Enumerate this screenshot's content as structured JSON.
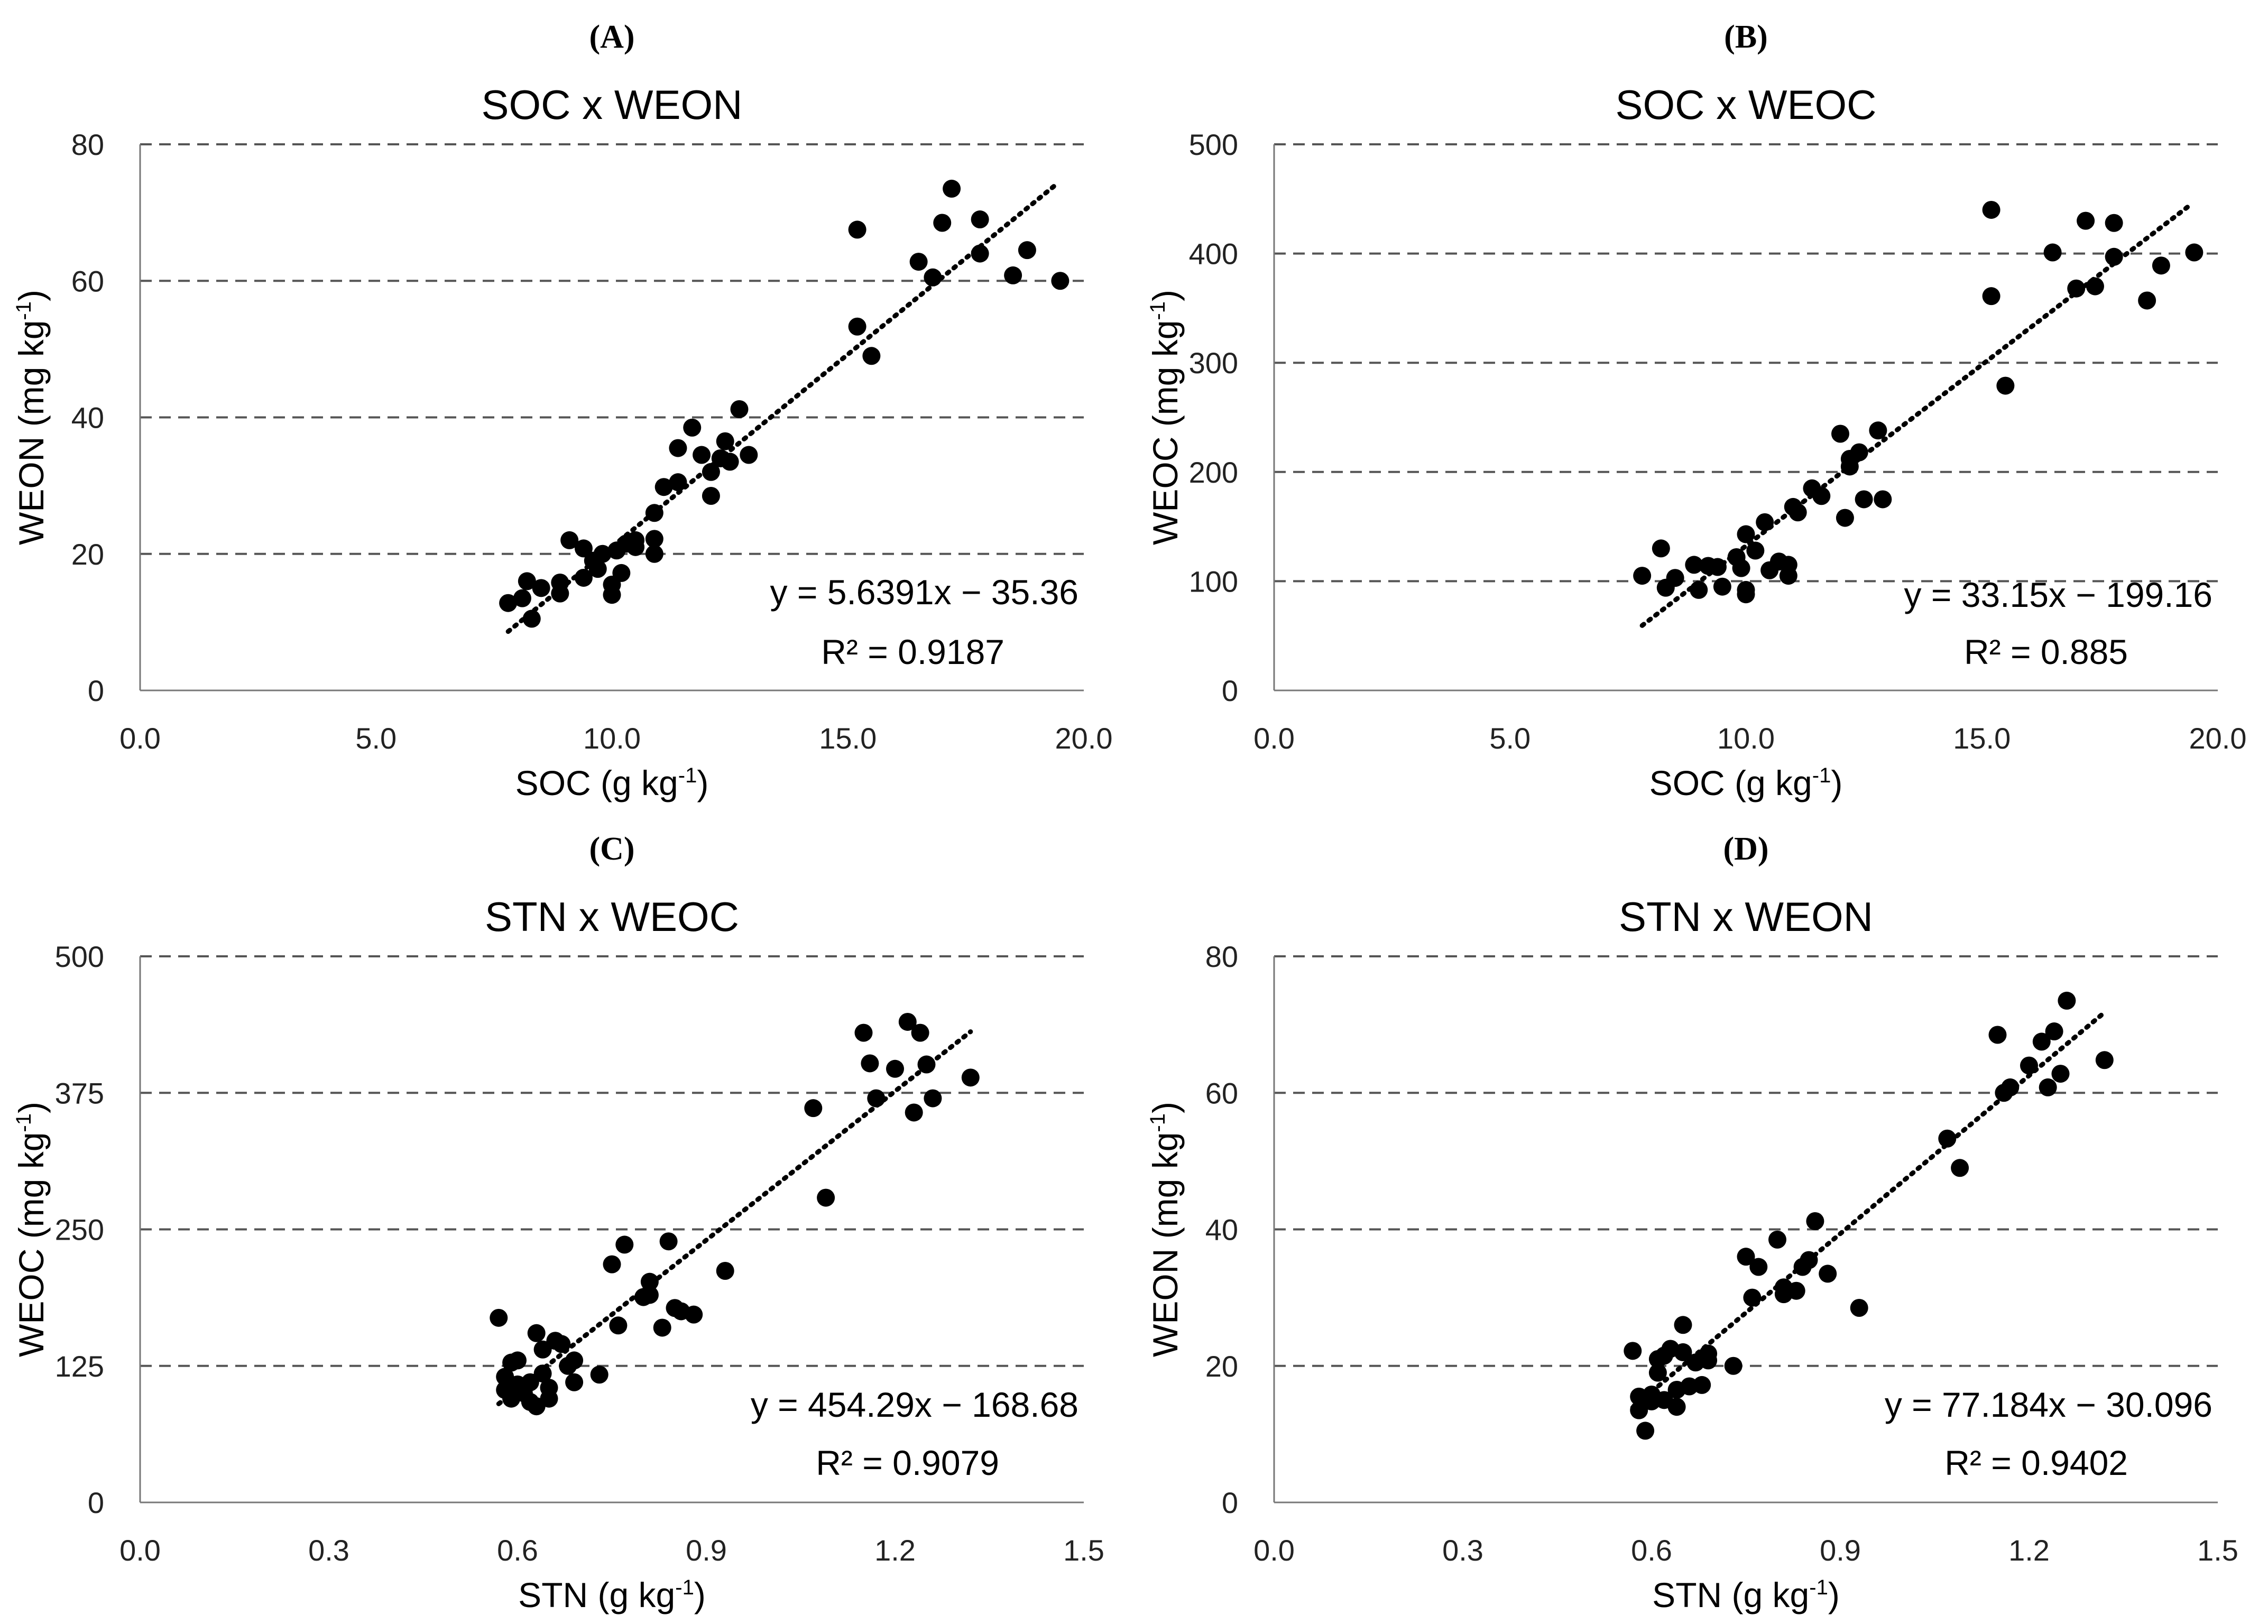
{
  "chart_data": [
    {
      "type": "scatter",
      "panel_label": "(A)",
      "title": "SOC x WEON",
      "xlabel": "SOC (g kg",
      "xlabel_sup": "-1",
      "xlabel_tail": ")",
      "ylabel": "WEON (mg kg",
      "ylabel_sup": "-1",
      "ylabel_tail": ")",
      "xlim": [
        0,
        20
      ],
      "ylim": [
        0,
        80
      ],
      "xticks": [
        0,
        5,
        10,
        15,
        20
      ],
      "xtick_labels": [
        "0.0",
        "5.0",
        "10.0",
        "15.0",
        "20.0"
      ],
      "yticks": [
        0,
        20,
        40,
        60,
        80
      ],
      "ytick_labels": [
        "0",
        "20",
        "40",
        "60",
        "80"
      ],
      "grid": "horizontal-dashed",
      "trendline": {
        "slope": 5.6391,
        "intercept": -35.36,
        "x_range": [
          7.8,
          19.4
        ]
      },
      "equation": "y = 5.6391x − 35.36",
      "r2": "R² = 0.9187",
      "points": [
        [
          7.8,
          12.8
        ],
        [
          8.1,
          13.5
        ],
        [
          8.2,
          16.0
        ],
        [
          8.3,
          10.5
        ],
        [
          8.5,
          15.0
        ],
        [
          8.9,
          14.2
        ],
        [
          8.9,
          15.8
        ],
        [
          9.1,
          22.0
        ],
        [
          9.4,
          20.8
        ],
        [
          9.4,
          16.5
        ],
        [
          9.6,
          19.0
        ],
        [
          9.7,
          17.8
        ],
        [
          9.8,
          20.0
        ],
        [
          10.0,
          14.0
        ],
        [
          10.0,
          15.5
        ],
        [
          10.1,
          20.5
        ],
        [
          10.2,
          17.2
        ],
        [
          10.3,
          21.5
        ],
        [
          10.5,
          22.0
        ],
        [
          10.5,
          21.0
        ],
        [
          10.9,
          20.0
        ],
        [
          10.9,
          22.2
        ],
        [
          10.9,
          26.0
        ],
        [
          11.1,
          29.8
        ],
        [
          11.4,
          35.5
        ],
        [
          11.4,
          30.5
        ],
        [
          11.7,
          38.5
        ],
        [
          11.9,
          34.5
        ],
        [
          12.1,
          32.0
        ],
        [
          12.1,
          28.5
        ],
        [
          12.3,
          34.0
        ],
        [
          12.4,
          36.5
        ],
        [
          12.5,
          33.5
        ],
        [
          12.7,
          41.2
        ],
        [
          12.9,
          34.5
        ],
        [
          15.2,
          67.5
        ],
        [
          15.2,
          53.3
        ],
        [
          15.5,
          49.0
        ],
        [
          16.5,
          62.8
        ],
        [
          16.8,
          60.5
        ],
        [
          17.0,
          68.5
        ],
        [
          17.2,
          73.5
        ],
        [
          17.8,
          64.0
        ],
        [
          17.8,
          69.0
        ],
        [
          18.5,
          60.8
        ],
        [
          18.8,
          64.5
        ],
        [
          19.5,
          60.0
        ]
      ]
    },
    {
      "type": "scatter",
      "panel_label": "(B)",
      "title": "SOC x WEOC",
      "xlabel": "SOC (g kg",
      "xlabel_sup": "-1",
      "xlabel_tail": ")",
      "ylabel": "WEOC (mg kg",
      "ylabel_sup": "-1",
      "ylabel_tail": ")",
      "xlim": [
        0,
        20
      ],
      "ylim": [
        0,
        500
      ],
      "xticks": [
        0,
        5,
        10,
        15,
        20
      ],
      "xtick_labels": [
        "0.0",
        "5.0",
        "10.0",
        "15.0",
        "20.0"
      ],
      "yticks": [
        0,
        100,
        200,
        300,
        400,
        500
      ],
      "ytick_labels": [
        "0",
        "100",
        "200",
        "300",
        "400",
        "500"
      ],
      "grid": "horizontal-dashed",
      "trendline": {
        "slope": 33.15,
        "intercept": -199.16,
        "x_range": [
          7.8,
          19.4
        ]
      },
      "equation": "y = 33.15x − 199.16",
      "r2": "R² = 0.885",
      "points": [
        [
          7.8,
          105
        ],
        [
          8.2,
          130
        ],
        [
          8.3,
          94
        ],
        [
          8.5,
          103
        ],
        [
          8.9,
          115
        ],
        [
          9.0,
          92
        ],
        [
          9.2,
          114
        ],
        [
          9.4,
          113
        ],
        [
          9.5,
          95
        ],
        [
          9.8,
          122
        ],
        [
          9.9,
          112
        ],
        [
          10.0,
          92
        ],
        [
          10.0,
          88
        ],
        [
          10.0,
          143
        ],
        [
          10.2,
          128
        ],
        [
          10.4,
          154
        ],
        [
          10.5,
          110
        ],
        [
          10.7,
          118
        ],
        [
          10.9,
          105
        ],
        [
          10.9,
          115
        ],
        [
          11.0,
          168
        ],
        [
          11.1,
          163
        ],
        [
          11.4,
          185
        ],
        [
          11.6,
          178
        ],
        [
          12.0,
          235
        ],
        [
          12.1,
          158
        ],
        [
          12.2,
          205
        ],
        [
          12.2,
          212
        ],
        [
          12.4,
          218
        ],
        [
          12.5,
          175
        ],
        [
          12.8,
          238
        ],
        [
          12.9,
          175
        ],
        [
          15.2,
          440
        ],
        [
          15.2,
          361
        ],
        [
          15.5,
          279
        ],
        [
          16.5,
          401
        ],
        [
          17.0,
          368
        ],
        [
          17.2,
          430
        ],
        [
          17.4,
          370
        ],
        [
          17.8,
          428
        ],
        [
          17.8,
          397
        ],
        [
          18.5,
          357
        ],
        [
          18.8,
          389
        ],
        [
          19.5,
          401
        ]
      ]
    },
    {
      "type": "scatter",
      "panel_label": "(C)",
      "title": "STN x WEOC",
      "xlabel": "STN (g kg",
      "xlabel_sup": "-1",
      "xlabel_tail": ")",
      "ylabel": "WEOC (mg kg",
      "ylabel_sup": "-1",
      "ylabel_tail": ")",
      "xlim": [
        0,
        1.5
      ],
      "ylim": [
        0,
        500
      ],
      "xticks": [
        0,
        0.3,
        0.6,
        0.9,
        1.2,
        1.5
      ],
      "xtick_labels": [
        "0.0",
        "0.3",
        "0.6",
        "0.9",
        "1.2",
        "1.5"
      ],
      "yticks": [
        0,
        125,
        250,
        375,
        500
      ],
      "ytick_labels": [
        "0",
        "125",
        "250",
        "375",
        "500"
      ],
      "grid": "horizontal-dashed",
      "trendline": {
        "slope": 454.29,
        "intercept": -168.68,
        "x_range": [
          0.57,
          1.32
        ]
      },
      "equation": "y = 454.29x − 168.68",
      "r2": "R² = 0.9079",
      "points": [
        [
          0.57,
          169
        ],
        [
          0.58,
          115
        ],
        [
          0.58,
          103
        ],
        [
          0.59,
          95
        ],
        [
          0.59,
          128
        ],
        [
          0.6,
          130
        ],
        [
          0.6,
          108
        ],
        [
          0.61,
          100
        ],
        [
          0.62,
          110
        ],
        [
          0.62,
          92
        ],
        [
          0.63,
          155
        ],
        [
          0.63,
          88
        ],
        [
          0.64,
          118
        ],
        [
          0.64,
          140
        ],
        [
          0.65,
          95
        ],
        [
          0.65,
          105
        ],
        [
          0.66,
          148
        ],
        [
          0.67,
          145
        ],
        [
          0.68,
          125
        ],
        [
          0.69,
          110
        ],
        [
          0.69,
          130
        ],
        [
          0.73,
          117
        ],
        [
          0.75,
          218
        ],
        [
          0.76,
          162
        ],
        [
          0.77,
          236
        ],
        [
          0.8,
          188
        ],
        [
          0.81,
          190
        ],
        [
          0.81,
          202
        ],
        [
          0.83,
          160
        ],
        [
          0.84,
          239
        ],
        [
          0.85,
          178
        ],
        [
          0.86,
          175
        ],
        [
          0.88,
          172
        ],
        [
          0.93,
          212
        ],
        [
          1.07,
          361
        ],
        [
          1.09,
          279
        ],
        [
          1.15,
          430
        ],
        [
          1.16,
          402
        ],
        [
          1.17,
          370
        ],
        [
          1.2,
          397
        ],
        [
          1.22,
          440
        ],
        [
          1.23,
          357
        ],
        [
          1.24,
          430
        ],
        [
          1.25,
          401
        ],
        [
          1.26,
          370
        ],
        [
          1.32,
          389
        ]
      ]
    },
    {
      "type": "scatter",
      "panel_label": "(D)",
      "title": "STN x WEON",
      "xlabel": "STN (g kg",
      "xlabel_sup": "-1",
      "xlabel_tail": ")",
      "ylabel": "WEON (mg kg",
      "ylabel_sup": "-1",
      "ylabel_tail": ")",
      "xlim": [
        0,
        1.5
      ],
      "ylim": [
        0,
        80
      ],
      "xticks": [
        0,
        0.3,
        0.6,
        0.9,
        1.2,
        1.5
      ],
      "xtick_labels": [
        "0.0",
        "0.3",
        "0.6",
        "0.9",
        "1.2",
        "1.5"
      ],
      "yticks": [
        0,
        20,
        40,
        60,
        80
      ],
      "ytick_labels": [
        "0",
        "20",
        "40",
        "60",
        "80"
      ],
      "grid": "horizontal-dashed",
      "trendline": {
        "slope": 77.184,
        "intercept": -30.096,
        "x_range": [
          0.57,
          1.32
        ]
      },
      "equation": "y = 77.184x − 30.096",
      "r2": "R² = 0.9402",
      "points": [
        [
          0.57,
          22.2
        ],
        [
          0.58,
          15.5
        ],
        [
          0.58,
          13.5
        ],
        [
          0.59,
          10.5
        ],
        [
          0.6,
          14.8
        ],
        [
          0.6,
          15.8
        ],
        [
          0.61,
          21.0
        ],
        [
          0.61,
          19.0
        ],
        [
          0.62,
          21.5
        ],
        [
          0.62,
          15.0
        ],
        [
          0.63,
          22.5
        ],
        [
          0.64,
          16.5
        ],
        [
          0.64,
          14.0
        ],
        [
          0.65,
          26.0
        ],
        [
          0.65,
          22.0
        ],
        [
          0.66,
          17.0
        ],
        [
          0.67,
          20.5
        ],
        [
          0.68,
          17.2
        ],
        [
          0.69,
          21.8
        ],
        [
          0.69,
          20.8
        ],
        [
          0.73,
          20.0
        ],
        [
          0.75,
          36.0
        ],
        [
          0.76,
          30.0
        ],
        [
          0.77,
          34.5
        ],
        [
          0.8,
          38.5
        ],
        [
          0.81,
          31.5
        ],
        [
          0.81,
          30.5
        ],
        [
          0.83,
          31.0
        ],
        [
          0.84,
          34.5
        ],
        [
          0.85,
          35.5
        ],
        [
          0.86,
          41.2
        ],
        [
          0.88,
          33.5
        ],
        [
          0.93,
          28.5
        ],
        [
          1.07,
          53.3
        ],
        [
          1.09,
          49.0
        ],
        [
          1.15,
          68.5
        ],
        [
          1.16,
          60.0
        ],
        [
          1.17,
          60.8
        ],
        [
          1.2,
          64.0
        ],
        [
          1.22,
          67.5
        ],
        [
          1.23,
          60.8
        ],
        [
          1.24,
          69.0
        ],
        [
          1.25,
          62.8
        ],
        [
          1.26,
          73.5
        ],
        [
          1.32,
          64.8
        ]
      ]
    }
  ]
}
